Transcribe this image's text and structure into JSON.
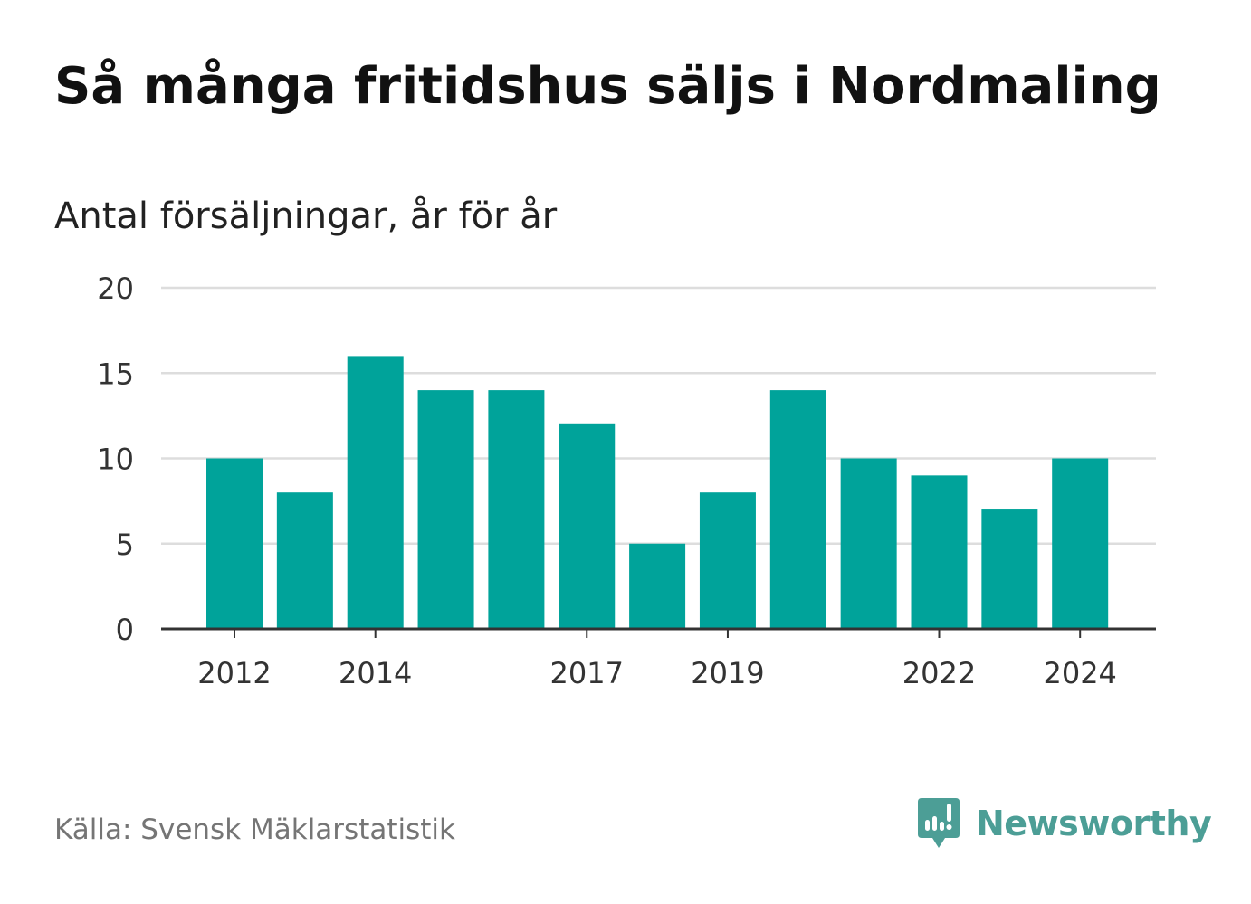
{
  "title": "Så många fritidshus säljs i Nordmaling",
  "subtitle": "Antal försäljningar, år för år",
  "source": "Källa: Svensk Mäklarstatistik",
  "brand": {
    "name": "Newsworthy",
    "color": "#4c9e96",
    "icon": "newsworthy-logo-icon"
  },
  "colors": {
    "bar": "#00a39a",
    "grid": "#dddddd",
    "axis": "#333333",
    "tick_text": "#333333"
  },
  "chart_data": {
    "type": "bar",
    "categories": [
      "2012",
      "2013",
      "2014",
      "2015",
      "2016",
      "2017",
      "2018",
      "2019",
      "2020",
      "2021",
      "2022",
      "2023",
      "2024"
    ],
    "values": [
      10,
      8,
      16,
      14,
      14,
      12,
      5,
      8,
      14,
      10,
      9,
      7,
      10
    ],
    "x_tick_labels": [
      "2012",
      "2014",
      "2017",
      "2019",
      "2022",
      "2024"
    ],
    "y_ticks": [
      "0",
      "5",
      "10",
      "15",
      "20"
    ],
    "ylim": [
      0,
      20
    ],
    "grid": true,
    "legend": "none"
  }
}
